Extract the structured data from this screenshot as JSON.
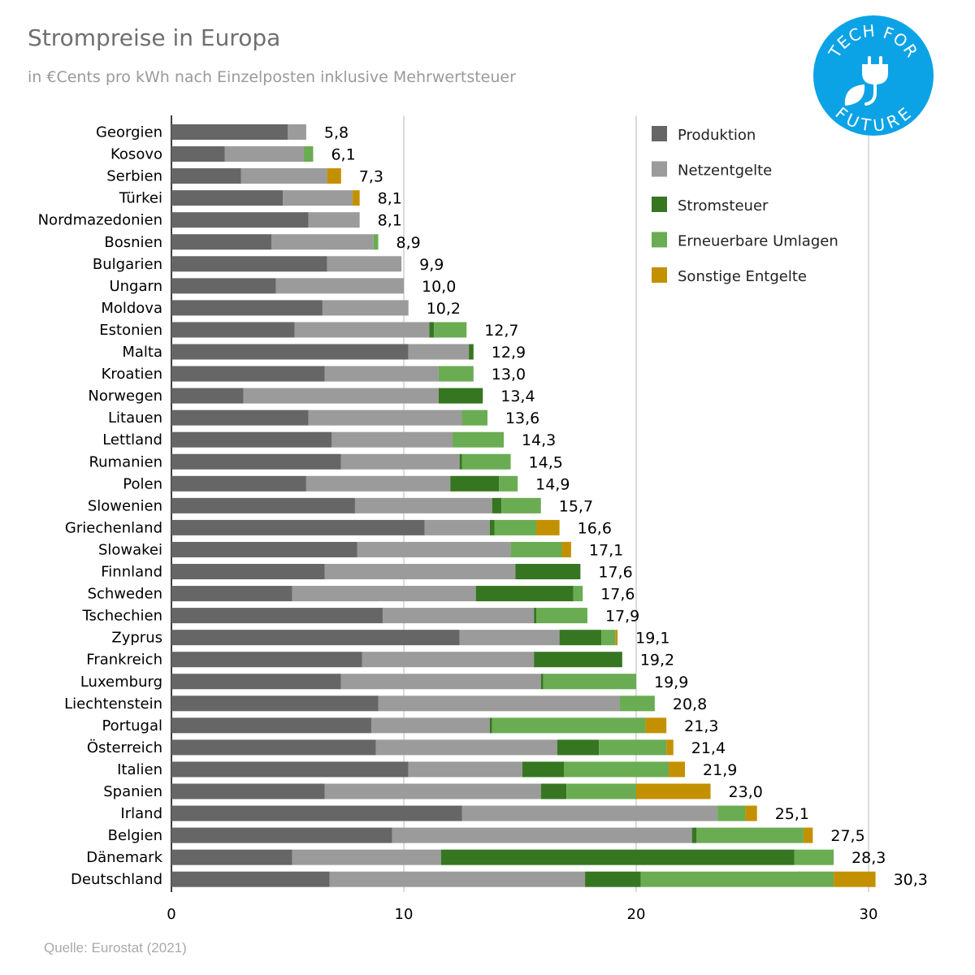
{
  "title": "Strompreise in Europa",
  "subtitle": "in €Cents pro kWh nach Einzelposten inklusive Mehrwertsteuer",
  "source": "Quelle: Eurostat (2021)",
  "logo": {
    "top_text": "TECH FOR",
    "bottom_text": "FUTURE",
    "color": "#0ba3e6"
  },
  "chart_data": {
    "type": "bar",
    "orientation": "horizontal",
    "stacked": true,
    "title": "Strompreise in Europa",
    "subtitle": "in €Cents pro kWh nach Einzelposten inklusive Mehrwertsteuer",
    "xlim": [
      0,
      30
    ],
    "x_ticks": [
      "0",
      "10",
      "20",
      "30"
    ],
    "grid": true,
    "legend_position": "top-right",
    "categories": [
      "Georgien",
      "Kosovo",
      "Serbien",
      "Türkei",
      "Nordmazedonien",
      "Bosnien",
      "Bulgarien",
      "Ungarn",
      "Moldova",
      "Estonien",
      "Malta",
      "Kroatien",
      "Norwegen",
      "Litauen",
      "Lettland",
      "Rumanien",
      "Polen",
      "Slowenien",
      "Griechenland",
      "Slowakei",
      "Finnland",
      "Schweden",
      "Tschechien",
      "Zyprus",
      "Frankreich",
      "Luxemburg",
      "Liechtenstein",
      "Portugal",
      "Österreich",
      "Italien",
      "Spanien",
      "Irland",
      "Belgien",
      "Dänemark",
      "Deutschland"
    ],
    "totals": [
      "5,8",
      "6,1",
      "7,3",
      "8,1",
      "8,1",
      "8,9",
      "9,9",
      "10,0",
      "10,2",
      "12,7",
      "12,9",
      "13,0",
      "13,4",
      "13,6",
      "14,3",
      "14,5",
      "14,9",
      "15,7",
      "16,6",
      "17,1",
      "17,6",
      "17,6",
      "17,9",
      "19,1",
      "19,2",
      "19,9",
      "20,8",
      "21,3",
      "21,4",
      "21,9",
      "23,0",
      "25,1",
      "27,5",
      "28,3",
      "30,3"
    ],
    "series": [
      {
        "name": "Produktion",
        "color": "#666666",
        "values": [
          5.0,
          2.3,
          3.0,
          4.8,
          5.9,
          4.3,
          6.7,
          4.5,
          6.5,
          5.3,
          10.2,
          6.6,
          3.1,
          5.9,
          6.9,
          7.3,
          5.8,
          7.9,
          10.9,
          8.0,
          6.6,
          5.2,
          9.1,
          12.4,
          8.2,
          7.3,
          8.9,
          8.6,
          8.8,
          10.2,
          6.6,
          12.5,
          9.5,
          5.2,
          6.8
        ]
      },
      {
        "name": "Netzentgelte",
        "color": "#9b9b9b",
        "values": [
          0.8,
          3.4,
          3.7,
          3.0,
          2.2,
          4.4,
          3.2,
          5.5,
          3.7,
          5.8,
          2.6,
          4.9,
          8.4,
          6.6,
          5.2,
          5.1,
          6.2,
          5.9,
          2.8,
          6.6,
          8.2,
          7.9,
          6.5,
          4.3,
          7.4,
          8.6,
          10.4,
          5.1,
          7.8,
          4.9,
          9.3,
          11.0,
          12.9,
          6.4,
          11.0
        ]
      },
      {
        "name": "Stromsteuer",
        "color": "#367621",
        "values": [
          0,
          0,
          0,
          0,
          0,
          0,
          0,
          0,
          0,
          0.2,
          0.2,
          0,
          1.9,
          0,
          0,
          0.1,
          2.1,
          0.4,
          0.2,
          0,
          2.8,
          4.2,
          0.1,
          1.8,
          3.8,
          0.1,
          0,
          0.1,
          1.8,
          1.8,
          1.1,
          0,
          0.2,
          15.2,
          2.4
        ]
      },
      {
        "name": "Erneuerbare Umlagen",
        "color": "#6aac52",
        "values": [
          0,
          0.4,
          0,
          0,
          0,
          0.2,
          0,
          0,
          0,
          1.4,
          0,
          1.5,
          0,
          1.1,
          2.2,
          2.1,
          0.8,
          1.7,
          1.8,
          2.2,
          0,
          0.4,
          2.2,
          0.6,
          0,
          4.0,
          1.5,
          6.6,
          2.9,
          4.5,
          3.0,
          1.2,
          4.6,
          1.7,
          8.3
        ]
      },
      {
        "name": "Sonstige Entgelte",
        "color": "#c39100",
        "values": [
          0,
          0,
          0.6,
          0.3,
          0,
          0,
          0,
          0,
          0,
          0,
          0,
          0,
          0,
          0,
          0,
          0,
          0,
          0,
          1.0,
          0.4,
          0,
          0,
          0,
          0.1,
          0,
          0,
          0,
          0.9,
          0.3,
          0.7,
          3.2,
          0.5,
          0.4,
          0,
          1.8
        ]
      }
    ]
  }
}
